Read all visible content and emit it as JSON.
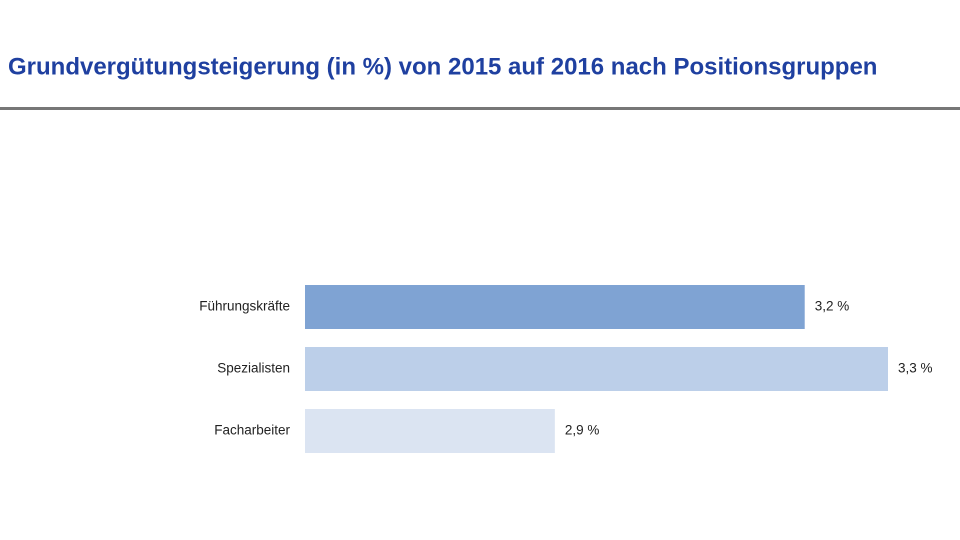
{
  "chart_data": {
    "type": "hbar",
    "title": "Grundvergütungsteigerung (in %) von 2015 auf 2016 nach Positionsgruppen",
    "categories": [
      "Führungskräfte",
      "Spezialisten",
      "Facharbeiter"
    ],
    "values": [
      3.2,
      3.3,
      2.9
    ],
    "value_labels": [
      "3,2 %",
      "3,3 %",
      "2,9 %"
    ],
    "colors": [
      "#7fa3d3",
      "#bccfe9",
      "#dbe4f2"
    ],
    "xlim": [
      2.6,
      3.3
    ]
  }
}
